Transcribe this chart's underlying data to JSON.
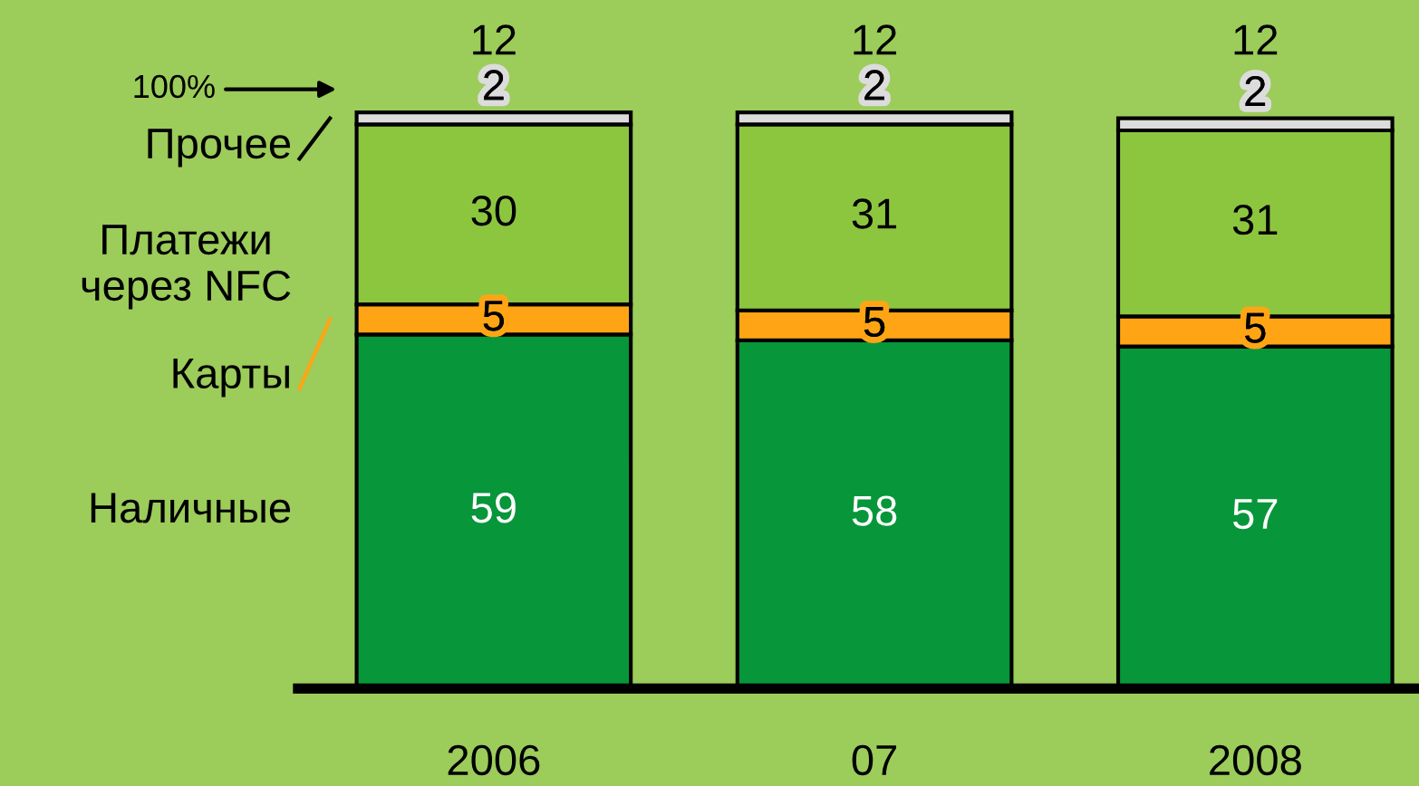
{
  "chart_data": {
    "type": "bar",
    "stacked": true,
    "data_labels": true,
    "legend": "left",
    "grid": false,
    "categories": [
      "2006",
      "07",
      "2008"
    ],
    "series": [
      {
        "name": "Наличные",
        "color": "#07963a",
        "values": [
          59,
          58,
          57
        ]
      },
      {
        "name": "Карты",
        "color": "#ffa515",
        "values": [
          5,
          5,
          5
        ]
      },
      {
        "name": "Платежи через NFC",
        "color": "#8cc63f",
        "values": [
          30,
          31,
          31
        ]
      },
      {
        "name": "Прочее",
        "color": "#dcdcdc",
        "values": [
          2,
          2,
          2
        ]
      }
    ],
    "annotations": [
      "100%",
      "12",
      "12",
      "12"
    ]
  }
}
